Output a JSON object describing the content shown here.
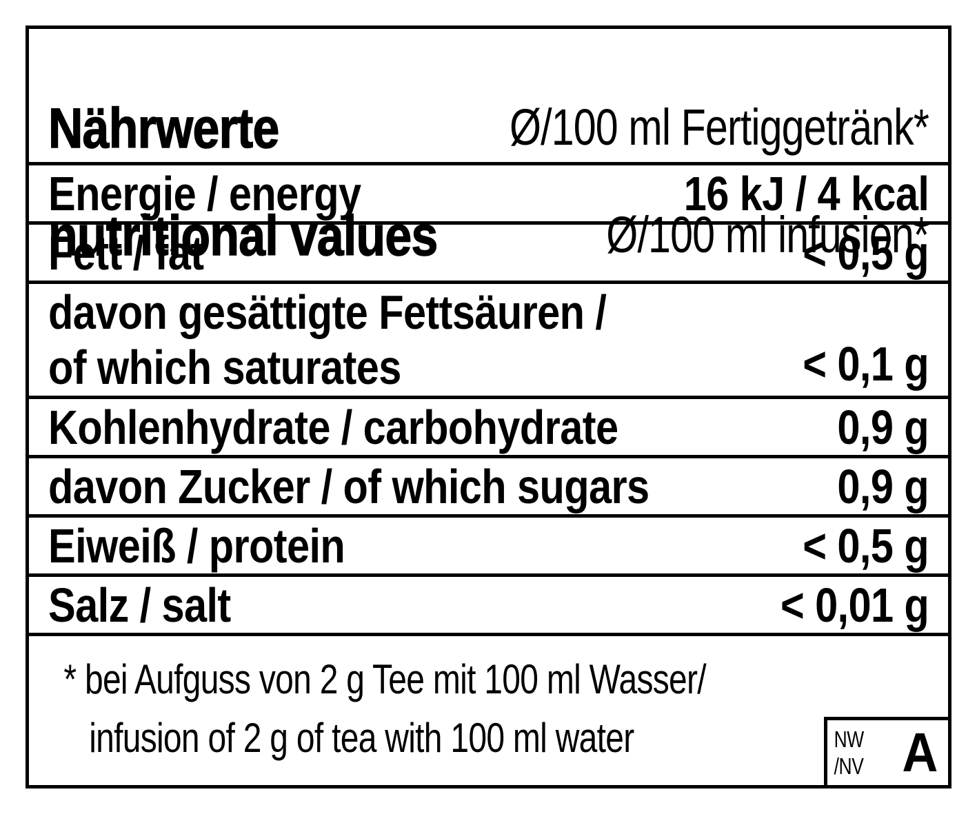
{
  "header": {
    "title_de": "Nährwerte",
    "title_en": "nutritional values",
    "column_de": "Ø/100 ml Fertiggetränk*",
    "column_en": "Ø/100 ml infusion*"
  },
  "rows": [
    {
      "label": "Energie / energy",
      "value": "16 kJ / 4 kcal"
    },
    {
      "label": "Fett / fat",
      "value": "< 0,5 g"
    },
    {
      "label": "davon gesättigte Fettsäuren /\nof which saturates",
      "value": "< 0,1 g"
    },
    {
      "label": "Kohlenhydrate / carbohydrate",
      "value": "0,9 g"
    },
    {
      "label": "davon Zucker / of which sugars",
      "value": "0,9 g"
    },
    {
      "label": "Eiweiß / protein",
      "value": "< 0,5 g"
    },
    {
      "label": "Salz / salt",
      "value": "< 0,01 g"
    }
  ],
  "footnote": "* bei Aufguss von 2 g Tee mit 100 ml Wasser/\ninfusion of 2 g of tea with 100 ml water",
  "badge": {
    "code": "NW\n/NV",
    "letter": "A"
  },
  "colors": {
    "text": "#000000",
    "border": "#000000",
    "background": "#ffffff"
  }
}
